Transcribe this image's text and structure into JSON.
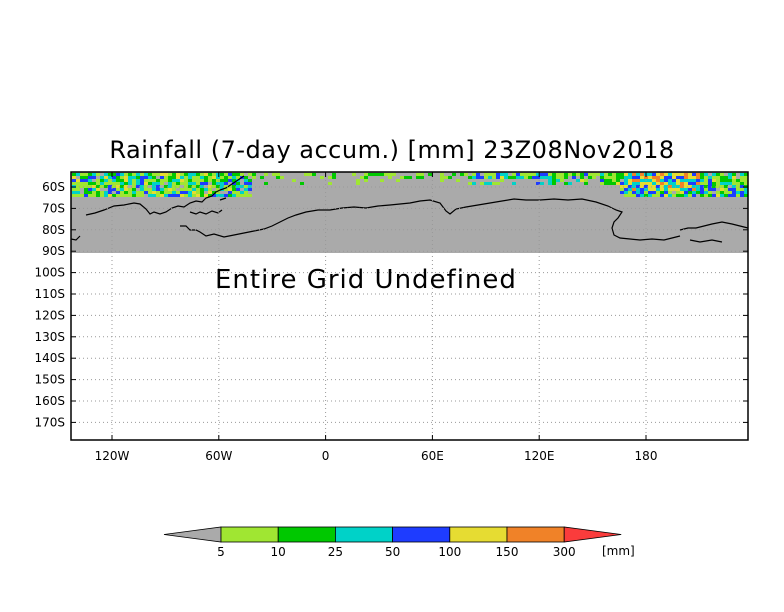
{
  "title": "Rainfall (7-day accum.) [mm] 23Z08Nov2018",
  "message": "Entire Grid Undefined",
  "latitude_labels": [
    "60S",
    "70S",
    "80S",
    "90S",
    "100S",
    "110S",
    "120S",
    "130S",
    "140S",
    "150S",
    "160S",
    "170S"
  ],
  "longitude_labels": [
    "120W",
    "60W",
    "0",
    "60E",
    "120E",
    "180"
  ],
  "colorbar": {
    "unit": "[mm]",
    "levels": [
      "5",
      "10",
      "25",
      "50",
      "100",
      "150",
      "300"
    ],
    "colors": [
      "#aaaaaa",
      "#a0e632",
      "#00c800",
      "#00d2c8",
      "#1e3cff",
      "#e6dc32",
      "#f08228",
      "#fa3c3c"
    ]
  },
  "colors": {
    "land": "#aaaaaa",
    "frame": "#000000",
    "grid": "#888888"
  }
}
